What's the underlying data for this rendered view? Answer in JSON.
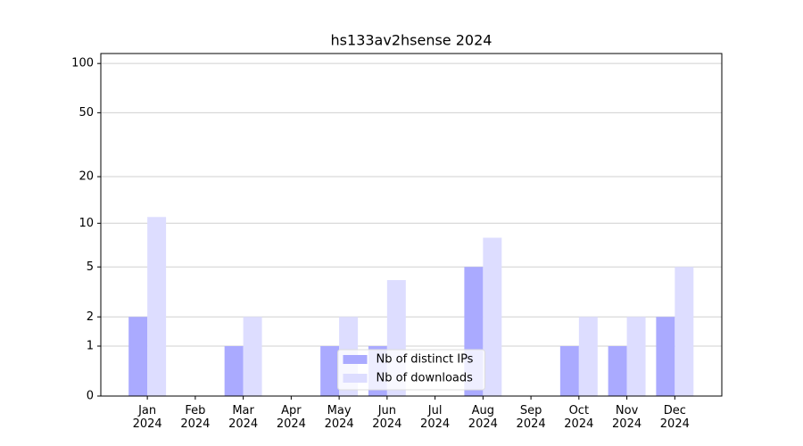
{
  "chart_data": {
    "type": "bar",
    "title": "hs133av2hsense 2024",
    "categories": [
      "Jan\n2024",
      "Feb\n2024",
      "Mar\n2024",
      "Apr\n2024",
      "May\n2024",
      "Jun\n2024",
      "Jul\n2024",
      "Aug\n2024",
      "Sep\n2024",
      "Oct\n2024",
      "Nov\n2024",
      "Dec\n2024"
    ],
    "series": [
      {
        "name": "Nb of distinct IPs",
        "color": "#aaaaff",
        "values": [
          2,
          0,
          1,
          0,
          1,
          1,
          0,
          5,
          0,
          1,
          1,
          2
        ]
      },
      {
        "name": "Nb of downloads",
        "color": "#ddddff",
        "values": [
          11,
          0,
          2,
          0,
          2,
          4,
          0,
          8,
          0,
          2,
          2,
          5
        ]
      }
    ],
    "yscale": "log1p",
    "ylim": [
      0,
      115
    ],
    "yticks": [
      0,
      1,
      2,
      5,
      10,
      20,
      50,
      100
    ],
    "grid": true,
    "legend": "lower center"
  }
}
